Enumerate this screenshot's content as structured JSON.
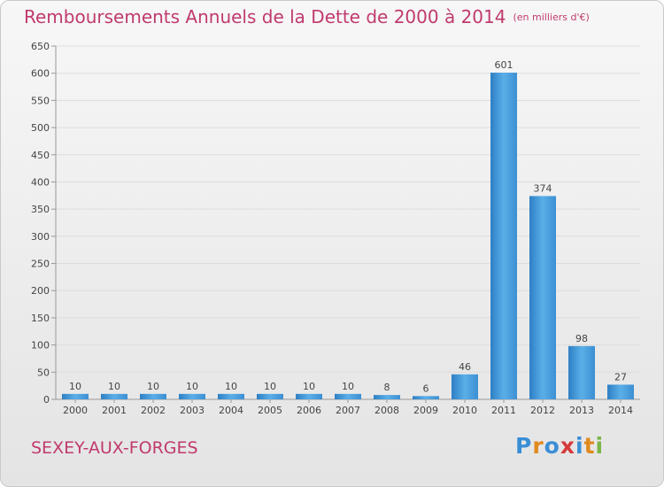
{
  "title": "Remboursements Annuels de la Dette de 2000 à 2014",
  "unit": "(en milliers d'€)",
  "commune": "SEXEY-AUX-FORGES",
  "logo": {
    "letters": [
      "P",
      "r",
      "o",
      "x",
      "i",
      "t",
      "i"
    ],
    "colors": [
      "#3a8ed6",
      "#e08a1e",
      "#3a8ed6",
      "#d63a3a",
      "#3a8ed6",
      "#e08a1e",
      "#7ab648"
    ]
  },
  "colors": {
    "bar": "#4a9fe0",
    "grid": "#dcdcdc",
    "title": "#c03a6e"
  },
  "chart_data": {
    "type": "bar",
    "categories": [
      "2000",
      "2001",
      "2002",
      "2003",
      "2004",
      "2005",
      "2006",
      "2007",
      "2008",
      "2009",
      "2010",
      "2011",
      "2012",
      "2013",
      "2014"
    ],
    "values": [
      10,
      10,
      10,
      10,
      10,
      10,
      10,
      10,
      8,
      6,
      46,
      601,
      374,
      98,
      27
    ],
    "ylim": [
      0,
      650
    ],
    "yticks": [
      0,
      50,
      100,
      150,
      200,
      250,
      300,
      350,
      400,
      450,
      500,
      550,
      600,
      650
    ],
    "grid": true
  }
}
